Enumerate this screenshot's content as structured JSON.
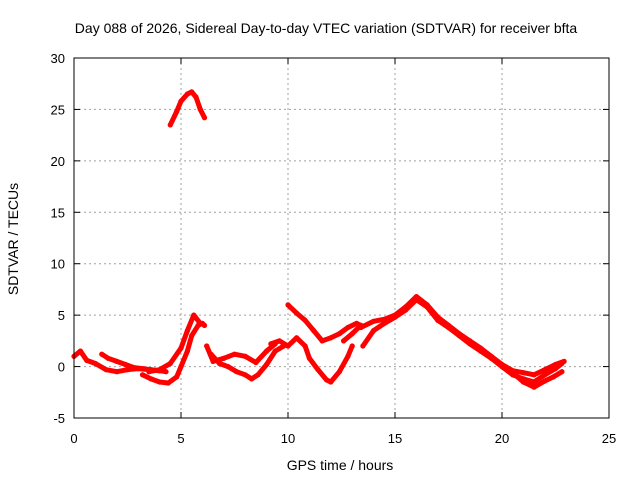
{
  "chart_data": {
    "type": "scatter",
    "title": "Day 088 of 2026, Sidereal Day-to-day VTEC variation (SDTVAR) for receiver bfta",
    "xlabel": "GPS time / hours",
    "ylabel": "SDTVAR / TECUs",
    "xlim": [
      0,
      25
    ],
    "ylim": [
      -5,
      30
    ],
    "xticks": [
      0,
      5,
      10,
      15,
      20,
      25
    ],
    "yticks": [
      -5,
      0,
      5,
      10,
      15,
      20,
      25,
      30
    ],
    "grid": true,
    "legend": "none",
    "color": "#ff0000",
    "series": [
      {
        "name": "s1",
        "x": [
          0.0,
          0.3,
          0.6,
          1.0,
          1.5,
          2.0,
          2.5,
          3.0,
          3.5,
          4.0,
          4.3
        ],
        "y": [
          1.0,
          1.5,
          0.6,
          0.3,
          -0.3,
          -0.5,
          -0.3,
          -0.2,
          -0.3,
          -0.4,
          -0.5
        ]
      },
      {
        "name": "s2",
        "x": [
          1.3,
          1.6,
          2.0,
          2.4,
          2.8,
          3.2,
          3.6,
          4.0
        ],
        "y": [
          1.2,
          0.8,
          0.5,
          0.2,
          -0.1,
          -0.2,
          -0.3,
          -0.4
        ]
      },
      {
        "name": "s3",
        "x": [
          3.2,
          3.6,
          4.0,
          4.4,
          4.8,
          5.0,
          5.3,
          5.5,
          5.8,
          6.0,
          6.1
        ],
        "y": [
          -0.8,
          -1.2,
          -1.5,
          -1.6,
          -1.0,
          0.0,
          1.5,
          3.0,
          4.0,
          4.2,
          4.0
        ]
      },
      {
        "name": "s4",
        "x": [
          3.5,
          4.0,
          4.5,
          5.0,
          5.3,
          5.6,
          5.9
        ],
        "y": [
          -0.5,
          -0.3,
          0.3,
          1.8,
          3.5,
          5.0,
          4.2
        ]
      },
      {
        "name": "s5",
        "x": [
          4.5,
          4.8,
          5.0,
          5.3,
          5.5,
          5.7,
          5.9,
          6.1
        ],
        "y": [
          23.5,
          24.8,
          25.8,
          26.5,
          26.7,
          26.2,
          25.0,
          24.2
        ]
      },
      {
        "name": "s6",
        "x": [
          6.2,
          6.5,
          7.0,
          7.5,
          8.0,
          8.5,
          9.0,
          9.4
        ],
        "y": [
          2.0,
          0.5,
          0.8,
          1.2,
          1.0,
          0.4,
          1.5,
          2.2
        ]
      },
      {
        "name": "s7",
        "x": [
          6.4,
          6.8,
          7.2,
          7.6,
          8.0,
          8.3,
          8.6,
          9.0,
          9.4,
          9.8
        ],
        "y": [
          1.2,
          0.3,
          0.0,
          -0.5,
          -0.8,
          -1.2,
          -0.8,
          0.2,
          1.5,
          2.0
        ]
      },
      {
        "name": "s8",
        "x": [
          9.2,
          9.6,
          10.0,
          10.4,
          10.8,
          11.0,
          11.4,
          11.8,
          12.0,
          12.4,
          12.8,
          13.0
        ],
        "y": [
          2.2,
          2.5,
          2.0,
          2.8,
          2.0,
          0.8,
          -0.3,
          -1.3,
          -1.5,
          -0.5,
          1.0,
          2.0
        ]
      },
      {
        "name": "s9",
        "x": [
          10.0,
          10.4,
          10.8,
          11.2,
          11.6,
          12.0,
          12.4,
          12.8,
          13.2,
          13.4
        ],
        "y": [
          6.0,
          5.2,
          4.5,
          3.5,
          2.5,
          2.8,
          3.2,
          3.8,
          4.2,
          4.0
        ]
      },
      {
        "name": "s10",
        "x": [
          12.6,
          13.0,
          13.4
        ],
        "y": [
          2.5,
          3.2,
          4.0
        ]
      },
      {
        "name": "s11",
        "x": [
          13.5,
          14.0,
          14.5,
          15.0,
          15.5,
          16.0,
          16.5,
          17.0,
          17.5,
          18.0,
          18.5,
          19.0,
          19.5,
          20.0,
          20.5,
          21.0,
          21.5,
          22.0,
          22.5,
          22.8
        ],
        "y": [
          2.0,
          3.5,
          4.2,
          4.8,
          5.5,
          6.5,
          5.8,
          4.5,
          3.8,
          3.0,
          2.2,
          1.5,
          0.8,
          0.0,
          -0.8,
          -1.2,
          -1.5,
          -0.8,
          -0.2,
          0.3
        ]
      },
      {
        "name": "s12",
        "x": [
          13.4,
          14.0,
          14.5,
          15.0,
          15.5,
          16.0,
          16.5,
          17.0,
          17.5,
          18.0,
          18.5,
          19.0,
          19.5,
          20.0,
          20.5,
          21.0,
          21.5,
          22.0,
          22.5,
          22.9
        ],
        "y": [
          3.8,
          4.4,
          4.6,
          5.0,
          5.8,
          6.8,
          6.0,
          4.8,
          4.0,
          3.2,
          2.5,
          1.8,
          1.0,
          0.2,
          -0.4,
          -0.6,
          -0.8,
          -0.3,
          0.2,
          0.5
        ]
      },
      {
        "name": "s13",
        "x": [
          20.5,
          21.0,
          21.5,
          22.0,
          22.4,
          22.8
        ],
        "y": [
          -0.6,
          -1.5,
          -2.0,
          -1.4,
          -1.0,
          -0.5
        ]
      }
    ]
  }
}
